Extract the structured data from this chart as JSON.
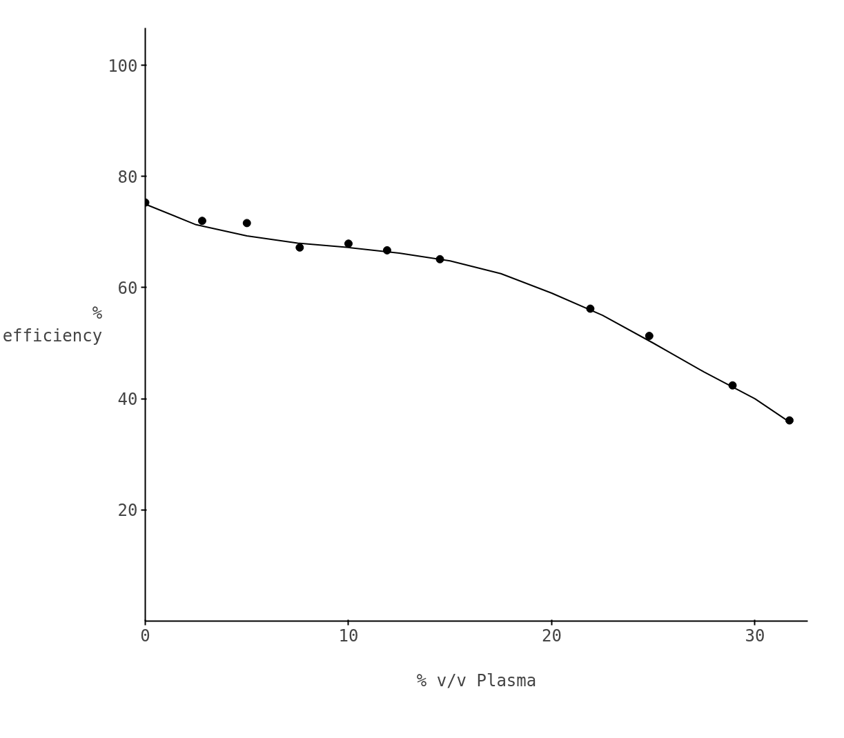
{
  "chart_data": {
    "type": "scatter",
    "xlabel": "% v/v Plasma",
    "ylabel": "% efficiency",
    "xlim": [
      0,
      32.6
    ],
    "ylim": [
      0,
      106.7
    ],
    "xticks": [
      0,
      10,
      20,
      30
    ],
    "yticks": [
      20,
      40,
      60,
      80,
      100
    ],
    "grid": false,
    "series": [
      {
        "color": "#000000",
        "marker": "circle",
        "x": [
          0,
          2.8,
          5.0,
          7.6,
          10.0,
          11.9,
          14.5,
          21.9,
          24.8,
          28.9,
          31.7
        ],
        "values": [
          75.3,
          72.0,
          71.6,
          67.2,
          67.9,
          66.7,
          65.1,
          56.2,
          51.3,
          42.4,
          36.1
        ]
      },
      {
        "type": "line",
        "color": "#000000",
        "line_style": "solid",
        "marker": "none",
        "x": [
          0,
          2.5,
          5,
          7.5,
          10,
          12.5,
          15,
          17.5,
          20,
          22.5,
          25,
          27.5,
          30,
          31.7
        ],
        "values": [
          75.0,
          71.3,
          69.3,
          68.0,
          67.2,
          66.2,
          64.8,
          62.5,
          59.0,
          55.0,
          50.0,
          44.8,
          40.0,
          35.8
        ]
      }
    ]
  }
}
